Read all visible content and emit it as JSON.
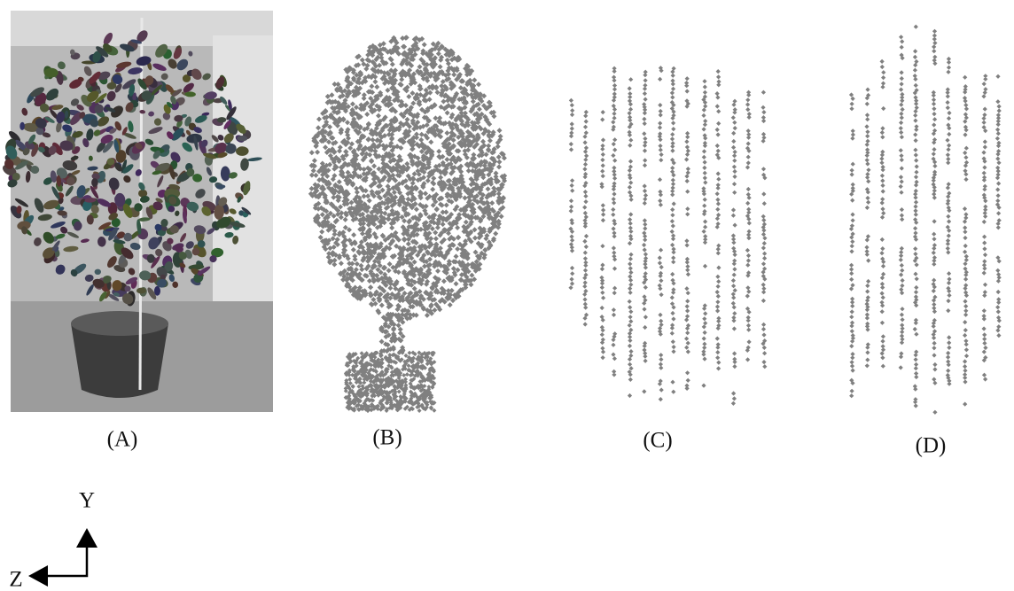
{
  "panels": [
    {
      "label": "(A)"
    },
    {
      "label": "(B)"
    },
    {
      "label": "(C)"
    },
    {
      "label": "(D)"
    }
  ],
  "axes": {
    "vertical": "Y",
    "horizontal": "Z"
  }
}
